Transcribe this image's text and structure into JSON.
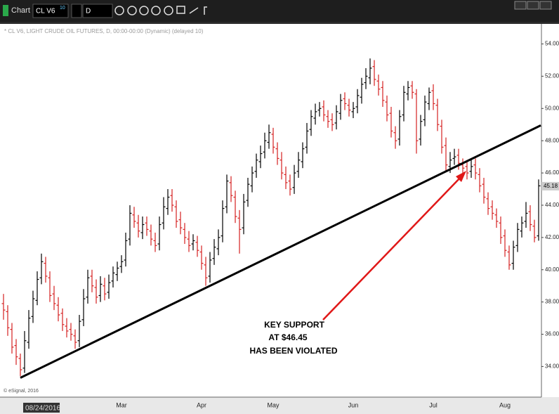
{
  "toolbar": {
    "title": "Chart",
    "symbol": "CL V6",
    "symbol_badge": "10",
    "interval": "D"
  },
  "chart_data": {
    "type": "ohlc",
    "title": "* CL V6, LIGHT CRUDE OIL FUTURES, D, 00:00-00:00 (Dynamic) (delayed 10)",
    "copyright": "© eSignal, 2016",
    "date_label": "08/24/2016",
    "up_color": "#000000",
    "down_color": "#d42020",
    "categories": [
      null,
      null,
      null,
      null,
      null,
      null,
      null,
      null,
      null,
      null,
      null,
      null,
      null,
      null,
      null,
      null,
      null,
      null,
      null,
      null,
      null,
      null,
      null,
      null,
      null,
      null,
      null,
      null,
      "Mar",
      null,
      null,
      null,
      null,
      null,
      null,
      null,
      null,
      null,
      null,
      null,
      null,
      null,
      null,
      null,
      null,
      null,
      null,
      "Apr",
      null,
      null,
      null,
      null,
      null,
      null,
      null,
      null,
      null,
      null,
      null,
      null,
      null,
      null,
      null,
      null,
      "May",
      null,
      null,
      null,
      null,
      null,
      null,
      null,
      null,
      null,
      null,
      null,
      null,
      null,
      null,
      null,
      null,
      null,
      null,
      "Jun",
      null,
      null,
      null,
      null,
      null,
      null,
      null,
      null,
      null,
      null,
      null,
      null,
      null,
      null,
      null,
      null,
      null,
      null,
      "Jul",
      null,
      null,
      null,
      null,
      null,
      null,
      null,
      null,
      null,
      null,
      null,
      null,
      null,
      null,
      null,
      null,
      "Aug",
      null,
      null,
      null,
      null,
      null,
      null,
      null,
      null
    ],
    "open": [
      37.9,
      37.4,
      36.3,
      35.3,
      34.5,
      33.9,
      35.5,
      37.1,
      38.1,
      39.5,
      40.4,
      39.5,
      38.5,
      37.8,
      37.3,
      36.5,
      36.3,
      35.9,
      35.6,
      36.9,
      38.3,
      39.6,
      38.9,
      38.4,
      39.0,
      38.6,
      39.3,
      39.7,
      40.2,
      40.6,
      41.9,
      43.4,
      42.9,
      42.3,
      42.9,
      42.4,
      41.8,
      41.6,
      42.9,
      43.8,
      44.6,
      43.9,
      43.1,
      42.5,
      41.9,
      41.6,
      41.7,
      41.1,
      40.3,
      39.6,
      40.7,
      41.3,
      42.1,
      43.9,
      45.4,
      44.5,
      43.2,
      42.6,
      44.3,
      45.2,
      46.1,
      46.7,
      47.3,
      47.9,
      48.4,
      47.5,
      46.8,
      45.9,
      45.5,
      45.1,
      46.1,
      46.7,
      47.6,
      48.7,
      49.4,
      49.9,
      50.1,
      49.5,
      49.3,
      49.1,
      49.7,
      50.6,
      50.2,
      49.8,
      50.1,
      50.7,
      51.6,
      51.9,
      52.6,
      51.7,
      51.3,
      50.4,
      49.7,
      48.5,
      48.1,
      49.6,
      50.9,
      51.4,
      50.9,
      48.1,
      49.3,
      50.3,
      51.1,
      50.2,
      48.9,
      47.7,
      46.4,
      46.9,
      47.1,
      46.5,
      46.4,
      46.1,
      46.5,
      45.9,
      45.3,
      44.4,
      43.9,
      43.4,
      42.9,
      42.1,
      41.1,
      40.4,
      41.5,
      42.4,
      43.0,
      43.6,
      42.7,
      42.1
    ],
    "high": [
      38.5,
      37.8,
      36.7,
      35.7,
      34.8,
      36.2,
      37.5,
      38.7,
      39.9,
      41.0,
      40.8,
      39.9,
      39.0,
      38.3,
      37.6,
      37.0,
      36.7,
      36.3,
      37.2,
      38.8,
      40.0,
      40.0,
      39.4,
      39.6,
      39.5,
      39.7,
      40.2,
      40.5,
      40.9,
      42.3,
      44.0,
      43.9,
      43.4,
      43.3,
      43.3,
      42.8,
      42.3,
      43.3,
      44.5,
      45.0,
      45.0,
      44.3,
      43.6,
      42.9,
      42.4,
      42.2,
      42.1,
      41.5,
      40.8,
      41.1,
      41.9,
      42.5,
      44.3,
      45.9,
      45.8,
      44.9,
      43.7,
      44.7,
      45.7,
      46.4,
      47.2,
      47.7,
      48.5,
      49.0,
      48.8,
      47.9,
      47.3,
      46.4,
      45.9,
      46.5,
      47.3,
      47.9,
      49.1,
      49.9,
      50.3,
      50.4,
      50.5,
      49.9,
      49.7,
      50.2,
      50.9,
      51.0,
      50.6,
      50.4,
      51.2,
      51.9,
      52.5,
      53.1,
      53.0,
      52.1,
      51.7,
      50.8,
      50.1,
      48.9,
      49.9,
      51.4,
      51.7,
      51.7,
      51.2,
      49.6,
      50.8,
      51.3,
      51.5,
      50.6,
      49.3,
      48.2,
      47.3,
      47.5,
      47.5,
      46.9,
      46.8,
      46.9,
      46.9,
      46.3,
      45.7,
      44.8,
      44.3,
      43.8,
      43.3,
      42.5,
      41.5,
      41.8,
      42.9,
      43.3,
      44.2,
      44.0,
      43.1,
      45.6
    ],
    "low": [
      36.9,
      35.9,
      34.8,
      34.1,
      33.4,
      33.6,
      35.1,
      36.7,
      37.8,
      39.1,
      39.2,
      38.0,
      37.5,
      36.8,
      36.2,
      35.8,
      35.6,
      35.1,
      35.2,
      36.5,
      37.9,
      38.6,
      37.9,
      38.0,
      38.1,
      38.2,
      38.9,
      39.3,
      39.8,
      40.2,
      41.5,
      42.6,
      42.0,
      41.9,
      42.1,
      41.5,
      41.1,
      41.2,
      42.5,
      43.4,
      43.6,
      42.6,
      42.2,
      41.6,
      41.1,
      41.2,
      40.8,
      40.0,
      39.0,
      39.2,
      40.3,
      40.9,
      41.7,
      43.5,
      44.2,
      42.9,
      41.0,
      42.2,
      43.9,
      44.8,
      45.7,
      46.3,
      46.9,
      47.5,
      47.2,
      46.5,
      45.6,
      45.0,
      44.6,
      44.7,
      45.7,
      46.3,
      47.2,
      48.3,
      49.0,
      49.5,
      49.2,
      48.8,
      48.6,
      48.7,
      49.3,
      49.9,
      49.5,
      49.4,
      49.7,
      50.3,
      51.2,
      51.5,
      51.4,
      50.8,
      50.1,
      49.2,
      48.2,
      47.5,
      47.7,
      49.2,
      50.5,
      50.6,
      47.2,
      47.7,
      48.9,
      49.9,
      49.9,
      48.6,
      47.2,
      46.1,
      46.0,
      46.5,
      46.2,
      45.9,
      45.6,
      45.7,
      45.6,
      44.8,
      44.1,
      43.4,
      43.1,
      42.6,
      41.6,
      40.8,
      40.0,
      40.0,
      41.1,
      42.0,
      42.6,
      42.4,
      41.7,
      41.8
    ],
    "close": [
      37.5,
      36.4,
      35.2,
      34.6,
      33.8,
      35.6,
      37.0,
      38.2,
      39.4,
      40.5,
      39.6,
      38.4,
      37.9,
      37.2,
      36.6,
      36.2,
      36.0,
      35.5,
      36.8,
      38.2,
      39.5,
      39.0,
      38.3,
      39.1,
      38.5,
      39.2,
      39.8,
      40.1,
      40.5,
      41.8,
      43.5,
      43.0,
      42.4,
      42.8,
      42.5,
      41.9,
      41.5,
      42.8,
      43.9,
      44.5,
      44.0,
      43.0,
      42.6,
      42.0,
      41.5,
      41.8,
      41.2,
      40.4,
      39.5,
      40.6,
      41.4,
      42.0,
      43.8,
      45.5,
      44.6,
      43.3,
      42.5,
      44.2,
      45.3,
      46.0,
      46.8,
      47.2,
      48.0,
      48.5,
      47.6,
      46.9,
      46.0,
      45.4,
      45.0,
      46.0,
      46.8,
      47.5,
      48.6,
      49.5,
      49.8,
      50.0,
      49.6,
      49.2,
      49.0,
      49.8,
      50.5,
      50.3,
      49.9,
      50.0,
      50.8,
      51.5,
      52.0,
      52.5,
      51.8,
      51.2,
      50.5,
      49.6,
      48.6,
      48.0,
      49.5,
      51.0,
      51.3,
      51.0,
      48.0,
      49.2,
      50.4,
      51.0,
      50.3,
      49.0,
      47.6,
      46.5,
      46.8,
      47.0,
      46.6,
      46.3,
      46.0,
      46.4,
      46.0,
      45.2,
      44.5,
      43.8,
      43.5,
      43.0,
      42.0,
      41.2,
      40.3,
      41.4,
      42.5,
      42.9,
      43.5,
      42.8,
      42.0,
      45.2
    ],
    "last_price": 45.18,
    "ylim": [
      32.1,
      55.2
    ],
    "yticks": [
      {
        "value": 34,
        "label": "34.00"
      },
      {
        "value": 36,
        "label": "36.00"
      },
      {
        "value": 38,
        "label": "38.00"
      },
      {
        "value": 40,
        "label": "40.00"
      },
      {
        "value": 42,
        "label": "42.00"
      },
      {
        "value": 44,
        "label": "44.00"
      },
      {
        "value": 46,
        "label": "46.00"
      },
      {
        "value": 48,
        "label": "48.00"
      },
      {
        "value": 50,
        "label": "50.00"
      },
      {
        "value": 52,
        "label": "52.00"
      },
      {
        "value": 54,
        "label": "54.00"
      }
    ],
    "trendline": {
      "x": [
        4,
        127.5
      ],
      "y": [
        33.3,
        48.95
      ]
    },
    "annotation": {
      "lines": [
        "KEY SUPPORT",
        "AT $46.45",
        "HAS BEEN VIOLATED"
      ]
    }
  }
}
